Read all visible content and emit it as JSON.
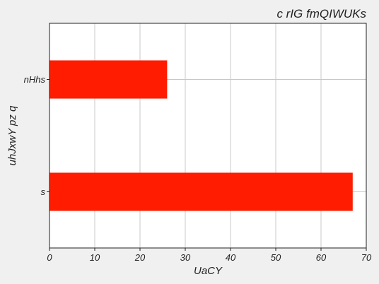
{
  "chart_data": {
    "type": "bar",
    "orientation": "horizontal",
    "title": "c rIG fmQIWUKs",
    "xlabel": "UaCY",
    "ylabel": "uhJxwY pz q",
    "categories": [
      "nHhs",
      "s"
    ],
    "values": [
      26,
      67
    ],
    "xlim": [
      0,
      70
    ],
    "xticks": [
      0,
      10,
      20,
      30,
      40,
      50,
      60,
      70
    ],
    "grid": true,
    "bar_color": "#ff1c00",
    "background_color": "#f0f0f0",
    "plot_background_color": "#ffffff"
  }
}
